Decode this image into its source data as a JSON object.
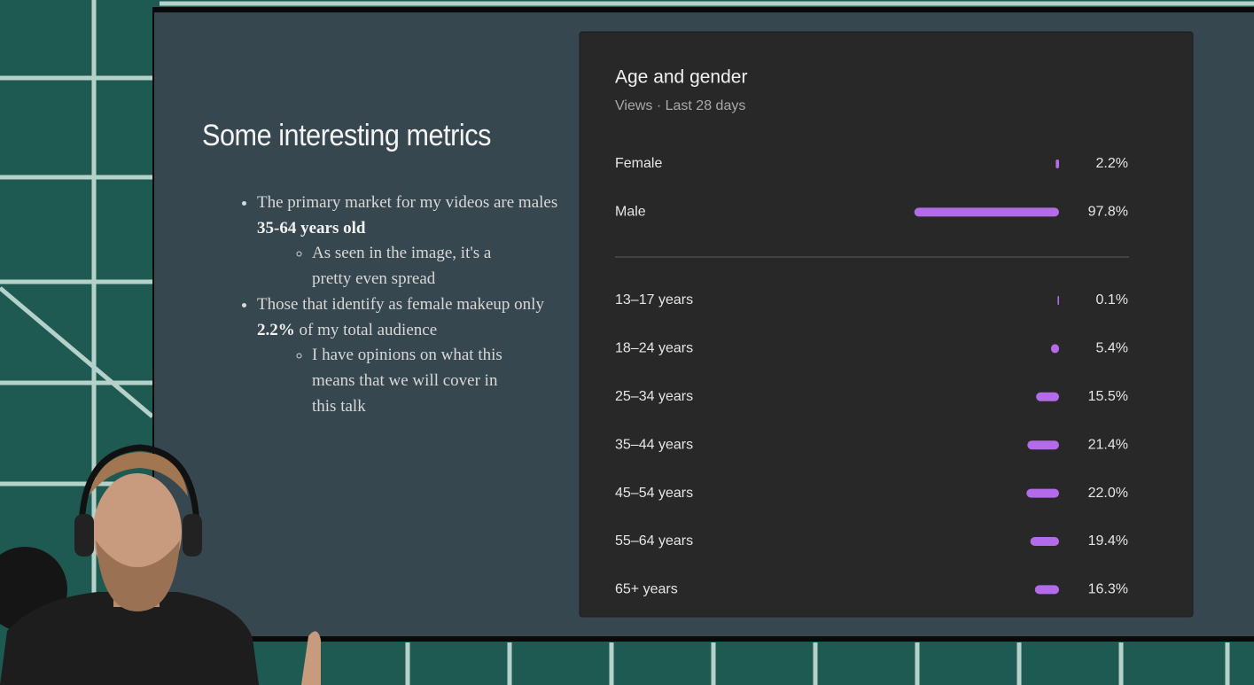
{
  "slide": {
    "title": "Some interesting metrics",
    "bullets": [
      {
        "text": "The primary market for my videos are males ",
        "bold": "35-64 years old",
        "sub": [
          "As seen in the image, it's a pretty even spread"
        ]
      },
      {
        "text": "Those that identify as female makeup only ",
        "bold": "2.2%",
        "after": " of my total audience",
        "sub": [
          "I have opinions on what this means that we will cover in this talk"
        ]
      }
    ]
  },
  "chart_data": [
    {
      "type": "bar",
      "orientation": "horizontal",
      "title": "Age and gender",
      "subtitle": "Views · Last 28 days",
      "categories": [
        "Female",
        "Male"
      ],
      "values": [
        2.2,
        97.8
      ],
      "value_labels": [
        "2.2%",
        "97.8%"
      ],
      "color": "#b46be9",
      "xlim": [
        0,
        100
      ]
    },
    {
      "type": "bar",
      "orientation": "horizontal",
      "categories": [
        "13–17 years",
        "18–24 years",
        "25–34 years",
        "35–44 years",
        "45–54 years",
        "55–64 years",
        "65+ years"
      ],
      "values": [
        0.1,
        5.4,
        15.5,
        21.4,
        22.0,
        19.4,
        16.3
      ],
      "value_labels": [
        "0.1%",
        "5.4%",
        "15.5%",
        "21.4%",
        "22.0%",
        "19.4%",
        "16.3%"
      ],
      "color": "#b46be9",
      "xlim": [
        0,
        100
      ]
    }
  ]
}
